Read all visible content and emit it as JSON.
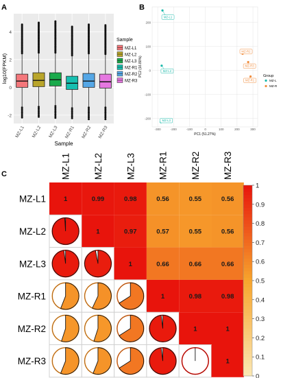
{
  "chart_data": [
    {
      "panel_label": "A",
      "type": "box",
      "xlabel": "Sample",
      "ylabel": "log10(FPKM)",
      "categories": [
        "MZ-L1",
        "MZ-L2",
        "MZ-L3",
        "MZ-R1",
        "MZ-R2",
        "MZ-R3"
      ],
      "yticks": [
        "-2",
        "0",
        "2",
        "4"
      ],
      "ylim": [
        -2.6,
        5.3
      ],
      "grid": true,
      "legend": {
        "title": "Sample",
        "placement": "right"
      },
      "series": [
        {
          "name": "MZ-L1",
          "color": "#f4777b",
          "q1": 0.0,
          "median": 0.45,
          "q3": 0.95,
          "whisker_low": -1.45,
          "whisker_high": 2.45,
          "outlier_high": 4.6,
          "outlier_low": -2.25
        },
        {
          "name": "MZ-L2",
          "color": "#b9a52a",
          "q1": 0.05,
          "median": 0.5,
          "q3": 1.05,
          "whisker_low": -1.4,
          "whisker_high": 2.5,
          "outlier_high": 4.7,
          "outlier_low": -2.2
        },
        {
          "name": "MZ-L3",
          "color": "#1aaa4b",
          "q1": 0.1,
          "median": 0.55,
          "q3": 1.05,
          "whisker_low": -1.35,
          "whisker_high": 2.5,
          "outlier_high": 4.75,
          "outlier_low": -2.2
        },
        {
          "name": "MZ-R1",
          "color": "#16bfb0",
          "q1": -0.15,
          "median": 0.3,
          "q3": 0.8,
          "whisker_low": -1.5,
          "whisker_high": 2.3,
          "outlier_high": 4.4,
          "outlier_low": -2.3
        },
        {
          "name": "MZ-R2",
          "color": "#55a7e6",
          "q1": 0.0,
          "median": 0.45,
          "q3": 1.0,
          "whisker_low": -1.45,
          "whisker_high": 2.45,
          "outlier_high": 4.55,
          "outlier_low": -2.3
        },
        {
          "name": "MZ-R3",
          "color": "#e577e0",
          "q1": -0.05,
          "median": 0.4,
          "q3": 0.95,
          "whisker_low": -1.45,
          "whisker_high": 2.4,
          "outlier_high": 4.5,
          "outlier_low": -2.3
        }
      ]
    },
    {
      "panel_label": "B",
      "type": "scatter",
      "xlabel": "PC1 (51.27%)",
      "ylabel": "PC2 (16.80%)",
      "xticks": [
        "-300",
        "-200",
        "-100",
        "0",
        "100",
        "200",
        "300"
      ],
      "yticks": [
        "-200",
        "-100",
        "0",
        "100",
        "200"
      ],
      "xlim": [
        -335,
        330
      ],
      "ylim": [
        -235,
        265
      ],
      "grid": true,
      "legend": {
        "title": "Group",
        "placement": "right"
      },
      "series": [
        {
          "name": "MZ-L",
          "color": "#19b9aa",
          "points": [
            {
              "label": "MZ-L1",
              "x": -270,
              "y": 250
            },
            {
              "label": "MZ-L2",
              "x": -275,
              "y": 20
            },
            {
              "label": "MZ-L3",
              "x": -280,
              "y": -215
            }
          ]
        },
        {
          "name": "MZ-R",
          "color": "#f08c3c",
          "points": [
            {
              "label": "MZ-R1",
              "x": 285,
              "y": -25
            },
            {
              "label": "MZ-R2",
              "x": 235,
              "y": 70
            },
            {
              "label": "MZ-R3",
              "x": 270,
              "y": 35
            }
          ]
        }
      ]
    },
    {
      "panel_label": "C",
      "type": "heatmap",
      "labels": [
        "MZ-L1",
        "MZ-L2",
        "MZ-L3",
        "MZ-R1",
        "MZ-R2",
        "MZ-R3"
      ],
      "colorbar_ticks": [
        "0",
        "0.1",
        "0.2",
        "0.3",
        "0.4",
        "0.5",
        "0.6",
        "0.7",
        "0.8",
        "0.9",
        "1"
      ],
      "colorbar_colors": {
        "low": "#fbe8b4",
        "mid": "#f7a52d",
        "high": "#e8140c"
      },
      "matrix": [
        [
          1,
          0.99,
          0.98,
          0.56,
          0.55,
          0.56
        ],
        [
          0.99,
          1,
          0.97,
          0.57,
          0.55,
          0.56
        ],
        [
          0.98,
          0.97,
          1,
          0.66,
          0.66,
          0.66
        ],
        [
          0.56,
          0.57,
          0.66,
          1,
          0.98,
          0.98
        ],
        [
          0.55,
          0.55,
          0.66,
          0.98,
          1,
          1
        ],
        [
          0.56,
          0.56,
          0.66,
          0.98,
          1,
          1
        ]
      ],
      "upper_text": [
        [
          "1",
          "0.99",
          "0.98",
          "0.56",
          "0.55",
          "0.56"
        ],
        [
          "",
          "1",
          "0.97",
          "0.57",
          "0.55",
          "0.56"
        ],
        [
          "",
          "",
          "1",
          "0.66",
          "0.66",
          "0.66"
        ],
        [
          "",
          "",
          "",
          "1",
          "0.98",
          "0.98"
        ],
        [
          "",
          "",
          "",
          "",
          "1",
          "1"
        ],
        [
          "",
          "",
          "",
          "",
          "",
          "1"
        ]
      ]
    }
  ]
}
